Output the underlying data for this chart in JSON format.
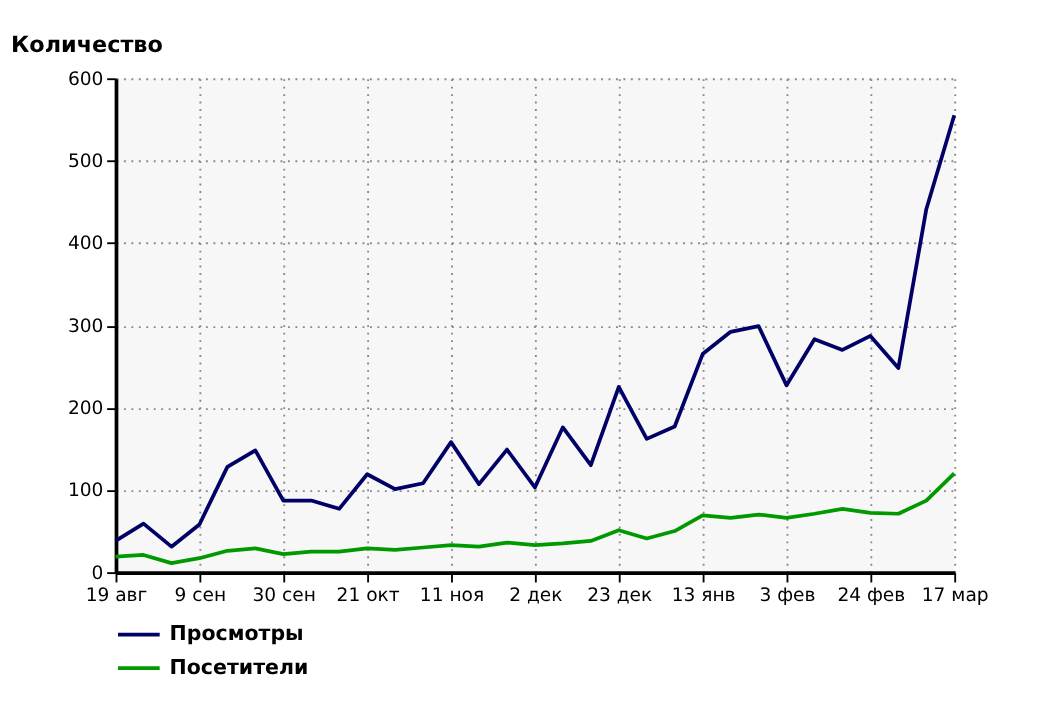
{
  "chart_data": {
    "type": "line",
    "title": "Количество",
    "categories": [
      "19 авг",
      null,
      null,
      "9 сен",
      null,
      null,
      "30 сен",
      null,
      null,
      "21 окт",
      null,
      null,
      "11 ноя",
      null,
      null,
      "2 дек",
      null,
      null,
      "23 дек",
      null,
      null,
      "13 янв",
      null,
      null,
      "3 фев",
      null,
      null,
      "24 фев",
      null,
      null,
      "17 мар"
    ],
    "series": [
      {
        "name": "Просмотры",
        "color": "#000066",
        "values": [
          38,
          59,
          31,
          58,
          128,
          148,
          87,
          87,
          77,
          119,
          101,
          108,
          158,
          107,
          149,
          103,
          176,
          130,
          225,
          162,
          177,
          265,
          292,
          299,
          227,
          283,
          270,
          287,
          248,
          441,
          555
        ]
      },
      {
        "name": "Посетители",
        "color": "#009900",
        "values": [
          19,
          21,
          11,
          17,
          26,
          29,
          22,
          25,
          25,
          29,
          27,
          30,
          33,
          31,
          36,
          33,
          35,
          38,
          51,
          41,
          50,
          69,
          66,
          70,
          66,
          71,
          77,
          72,
          71,
          87,
          120
        ]
      }
    ],
    "ylim": [
      0,
      600
    ],
    "yticks": [
      0,
      100,
      200,
      300,
      400,
      500,
      600
    ],
    "grid": true,
    "legend": "bottom",
    "line_style": "solid",
    "marker": "none"
  }
}
